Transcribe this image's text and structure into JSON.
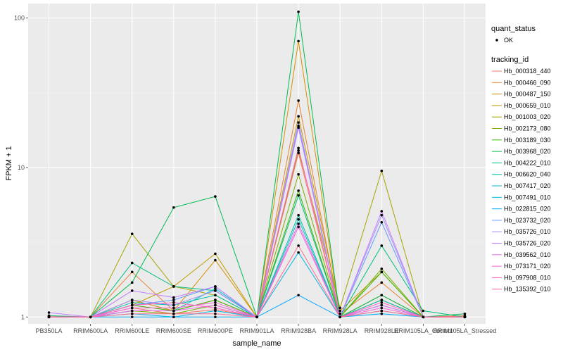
{
  "chart_data": {
    "type": "line",
    "title": "",
    "xlabel": "sample_name",
    "ylabel": "FPKM + 1",
    "y_scale": "log10",
    "ylim": [
      0.9,
      125
    ],
    "y_ticks": [
      1,
      10,
      100
    ],
    "y_tick_labels": [
      "1",
      "10",
      "100"
    ],
    "grid": true,
    "legend_position": "right",
    "categories": [
      "PB350LA",
      "RRIM600LA",
      "RRIM600LE",
      "RRIM600SE",
      "RRIM600PE",
      "RRIM901LA",
      "RRIM928BA",
      "RRIM928LA",
      "RRIM928LE",
      "RRIM105LA_Control",
      "RRIM105LA_Stressed"
    ],
    "quant_status": {
      "title": "quant_status",
      "entries": [
        "OK"
      ],
      "marker_color": "#000000"
    },
    "tracking_id_title": "tracking_id",
    "series": [
      {
        "name": "Hb_000318_440",
        "color": "#F8766D",
        "values": [
          1.0,
          1.0,
          1.15,
          1.05,
          1.12,
          1.0,
          12.5,
          1.0,
          1.3,
          1.0,
          1.0
        ]
      },
      {
        "name": "Hb_000466_090",
        "color": "#EA8331",
        "values": [
          1.0,
          1.0,
          2.0,
          1.1,
          1.3,
          1.0,
          28.0,
          1.05,
          1.7,
          1.0,
          1.02
        ]
      },
      {
        "name": "Hb_000487_150",
        "color": "#D89000",
        "values": [
          1.02,
          1.0,
          1.3,
          1.1,
          2.4,
          1.0,
          70.0,
          1.0,
          1.4,
          1.0,
          1.0
        ]
      },
      {
        "name": "Hb_000659_010",
        "color": "#C09B00",
        "values": [
          1.0,
          1.0,
          1.2,
          1.6,
          2.65,
          1.0,
          22.0,
          1.1,
          2.0,
          1.0,
          1.0
        ]
      },
      {
        "name": "Hb_001003_020",
        "color": "#A3A500",
        "values": [
          1.0,
          1.0,
          3.6,
          1.6,
          1.4,
          1.0,
          13.0,
          1.15,
          9.5,
          1.0,
          1.0
        ]
      },
      {
        "name": "Hb_002173_080",
        "color": "#7CAE00",
        "values": [
          1.0,
          1.0,
          1.1,
          1.05,
          1.2,
          1.0,
          9.0,
          1.0,
          2.1,
          1.0,
          1.0
        ]
      },
      {
        "name": "Hb_003189_030",
        "color": "#39B600",
        "values": [
          1.0,
          1.0,
          1.2,
          1.1,
          1.3,
          1.0,
          7.0,
          1.0,
          2.0,
          1.0,
          1.0
        ]
      },
      {
        "name": "Hb_003968_020",
        "color": "#00BB4E",
        "values": [
          1.0,
          1.0,
          1.7,
          5.4,
          6.4,
          1.0,
          110.0,
          1.0,
          1.4,
          1.0,
          1.05
        ]
      },
      {
        "name": "Hb_004222_010",
        "color": "#00BF7D",
        "values": [
          1.02,
          1.0,
          2.3,
          1.6,
          1.5,
          1.0,
          6.5,
          1.0,
          3.0,
          1.1,
          1.0
        ]
      },
      {
        "name": "Hb_006620_040",
        "color": "#00C1A3",
        "values": [
          1.0,
          1.0,
          1.25,
          1.2,
          1.4,
          1.0,
          4.8,
          1.0,
          1.3,
          1.0,
          1.0
        ]
      },
      {
        "name": "Hb_007417_020",
        "color": "#00BFC4",
        "values": [
          1.0,
          1.0,
          1.1,
          1.1,
          1.55,
          1.0,
          4.5,
          1.0,
          1.2,
          1.0,
          1.0
        ]
      },
      {
        "name": "Hb_007491_010",
        "color": "#00B8E7",
        "values": [
          1.0,
          1.0,
          1.05,
          1.0,
          1.1,
          1.0,
          2.7,
          1.0,
          1.1,
          1.0,
          1.0
        ]
      },
      {
        "name": "Hb_022815_020",
        "color": "#00A9FF",
        "values": [
          1.0,
          1.0,
          1.0,
          1.0,
          1.0,
          1.0,
          1.4,
          1.0,
          1.05,
          1.0,
          1.0
        ]
      },
      {
        "name": "Hb_023732_020",
        "color": "#619CFF",
        "values": [
          1.0,
          1.0,
          1.2,
          1.3,
          1.6,
          1.0,
          19.0,
          1.0,
          4.3,
          1.0,
          1.0
        ]
      },
      {
        "name": "Hb_035726_010",
        "color": "#A58AFF",
        "values": [
          1.0,
          1.0,
          1.3,
          1.2,
          1.5,
          1.0,
          20.0,
          1.0,
          4.8,
          1.0,
          1.0
        ]
      },
      {
        "name": "Hb_035726_020",
        "color": "#C77CFF",
        "values": [
          1.07,
          1.0,
          1.5,
          1.35,
          1.6,
          1.0,
          18.5,
          1.0,
          5.1,
          1.0,
          1.0
        ]
      },
      {
        "name": "Hb_039562_010",
        "color": "#E76BF3",
        "values": [
          1.0,
          1.0,
          1.1,
          1.1,
          1.2,
          1.0,
          4.2,
          1.0,
          1.2,
          1.0,
          1.0
        ]
      },
      {
        "name": "Hb_073171_020",
        "color": "#FA62DB",
        "values": [
          1.0,
          1.0,
          1.15,
          1.15,
          1.25,
          1.0,
          4.0,
          1.0,
          1.15,
          1.0,
          1.0
        ]
      },
      {
        "name": "Hb_097908_010",
        "color": "#FF62BC",
        "values": [
          1.0,
          1.0,
          1.2,
          1.25,
          1.15,
          1.0,
          13.5,
          1.0,
          1.25,
          1.0,
          1.0
        ]
      },
      {
        "name": "Hb_135392_010",
        "color": "#FF6C91",
        "values": [
          1.0,
          1.0,
          1.05,
          1.05,
          1.05,
          1.0,
          3.0,
          1.0,
          1.1,
          1.0,
          1.0
        ]
      }
    ]
  }
}
